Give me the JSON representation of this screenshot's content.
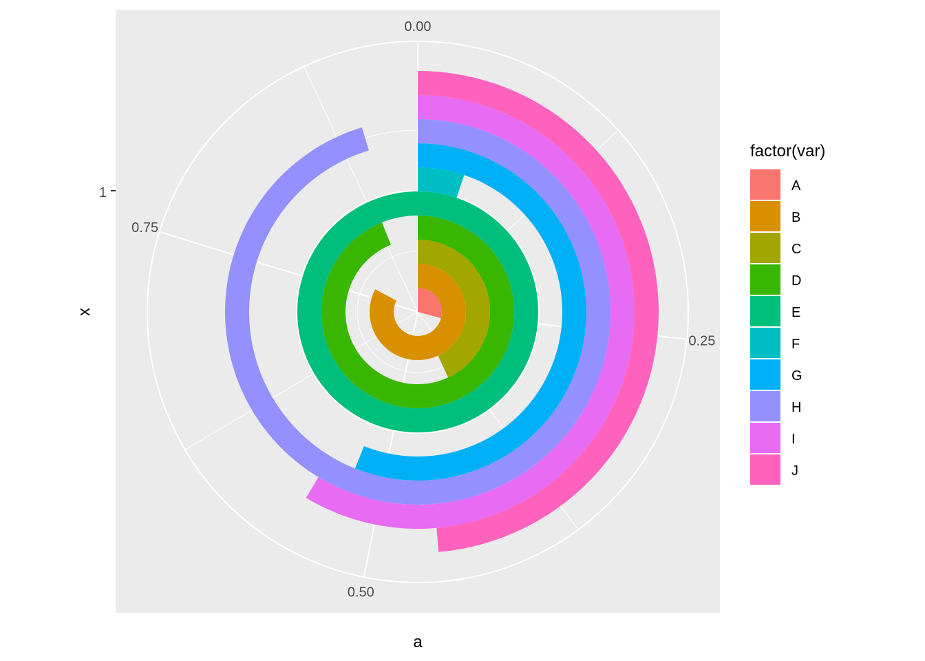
{
  "chart_data": {
    "type": "bar",
    "coord": "polar",
    "categories": [
      "A",
      "B",
      "C",
      "D",
      "E",
      "F",
      "G",
      "H",
      "I",
      "J"
    ],
    "values": [
      0.274,
      0.778,
      0.405,
      0.883,
      0.94,
      0.049,
      0.527,
      0.896,
      0.551,
      0.457
    ],
    "colors": [
      "#F8766D",
      "#D89000",
      "#A3A500",
      "#39B600",
      "#00BF7D",
      "#00BFC4",
      "#00B0F6",
      "#9590FF",
      "#E76BF3",
      "#FF62BC"
    ],
    "theta_range": [
      0,
      0.94
    ],
    "theta_ticks": [
      "0.00",
      "0.25",
      "0.50",
      "0.75"
    ],
    "theta_tick_values": [
      0,
      0.25,
      0.5,
      0.75
    ],
    "radial_ticks": [
      "1"
    ],
    "xlabel": "a",
    "ylabel": "x",
    "legend": {
      "title": "factor(var)",
      "position": "right"
    },
    "panel_background": "#EBEBEB",
    "grid": true
  }
}
